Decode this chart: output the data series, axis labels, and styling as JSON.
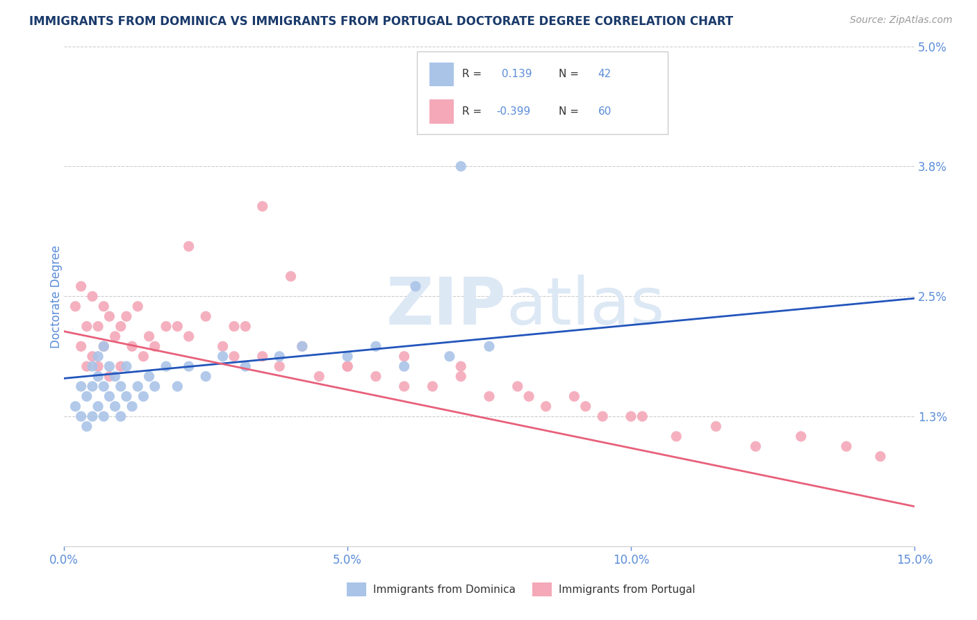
{
  "title": "IMMIGRANTS FROM DOMINICA VS IMMIGRANTS FROM PORTUGAL DOCTORATE DEGREE CORRELATION CHART",
  "source_text": "Source: ZipAtlas.com",
  "ylabel": "Doctorate Degree",
  "xlim": [
    0,
    0.15
  ],
  "ylim": [
    0,
    0.05
  ],
  "xticks": [
    0.0,
    0.05,
    0.1,
    0.15
  ],
  "xticklabels": [
    "0.0%",
    "5.0%",
    "10.0%",
    "15.0%"
  ],
  "ytick_positions": [
    0.013,
    0.025,
    0.038,
    0.05
  ],
  "ytick_labels": [
    "1.3%",
    "2.5%",
    "3.8%",
    "5.0%"
  ],
  "grid_color": "#cccccc",
  "background_color": "#ffffff",
  "title_color": "#1a3a6b",
  "source_color": "#999999",
  "tick_label_color": "#5b8dd9",
  "watermark_text": "ZIPatlas",
  "dominica_color": "#aac4e8",
  "portugal_color": "#f4a8b8",
  "dominica_line_color": "#2255bb",
  "portugal_line_color": "#e8607a",
  "legend_box_dominica": "#aac4e8",
  "legend_box_portugal": "#f4a8b8",
  "dominica_R": 0.139,
  "dominica_N": 42,
  "portugal_R": -0.399,
  "portugal_N": 60,
  "dominica_scatter_x": [
    0.002,
    0.003,
    0.003,
    0.004,
    0.004,
    0.005,
    0.005,
    0.005,
    0.006,
    0.006,
    0.006,
    0.007,
    0.007,
    0.007,
    0.008,
    0.008,
    0.009,
    0.009,
    0.01,
    0.01,
    0.011,
    0.011,
    0.012,
    0.013,
    0.014,
    0.015,
    0.016,
    0.018,
    0.02,
    0.022,
    0.025,
    0.028,
    0.032,
    0.038,
    0.042,
    0.05,
    0.055,
    0.06,
    0.068,
    0.075,
    0.062,
    0.07
  ],
  "dominica_scatter_y": [
    0.014,
    0.013,
    0.016,
    0.012,
    0.015,
    0.013,
    0.016,
    0.018,
    0.014,
    0.017,
    0.019,
    0.013,
    0.016,
    0.02,
    0.015,
    0.018,
    0.014,
    0.017,
    0.013,
    0.016,
    0.015,
    0.018,
    0.014,
    0.016,
    0.015,
    0.017,
    0.016,
    0.018,
    0.016,
    0.018,
    0.017,
    0.019,
    0.018,
    0.019,
    0.02,
    0.019,
    0.02,
    0.018,
    0.019,
    0.02,
    0.026,
    0.038
  ],
  "portugal_scatter_x": [
    0.002,
    0.003,
    0.003,
    0.004,
    0.004,
    0.005,
    0.005,
    0.006,
    0.006,
    0.007,
    0.007,
    0.008,
    0.008,
    0.009,
    0.01,
    0.01,
    0.011,
    0.012,
    0.013,
    0.014,
    0.015,
    0.016,
    0.018,
    0.02,
    0.022,
    0.025,
    0.028,
    0.03,
    0.032,
    0.035,
    0.038,
    0.042,
    0.045,
    0.05,
    0.055,
    0.06,
    0.065,
    0.07,
    0.075,
    0.08,
    0.085,
    0.09,
    0.095,
    0.1,
    0.108,
    0.115,
    0.122,
    0.13,
    0.138,
    0.144,
    0.022,
    0.03,
    0.04,
    0.05,
    0.06,
    0.07,
    0.082,
    0.092,
    0.102,
    0.035
  ],
  "portugal_scatter_y": [
    0.024,
    0.026,
    0.02,
    0.022,
    0.018,
    0.025,
    0.019,
    0.022,
    0.018,
    0.024,
    0.02,
    0.023,
    0.017,
    0.021,
    0.022,
    0.018,
    0.023,
    0.02,
    0.024,
    0.019,
    0.021,
    0.02,
    0.022,
    0.022,
    0.021,
    0.023,
    0.02,
    0.019,
    0.022,
    0.019,
    0.018,
    0.02,
    0.017,
    0.018,
    0.017,
    0.016,
    0.016,
    0.017,
    0.015,
    0.016,
    0.014,
    0.015,
    0.013,
    0.013,
    0.011,
    0.012,
    0.01,
    0.011,
    0.01,
    0.009,
    0.03,
    0.022,
    0.027,
    0.018,
    0.019,
    0.018,
    0.015,
    0.014,
    0.013,
    0.034
  ],
  "dominica_trend_y_start": 0.0168,
  "dominica_trend_y_end": 0.0248,
  "portugal_trend_y_start": 0.0215,
  "portugal_trend_y_end": 0.004
}
